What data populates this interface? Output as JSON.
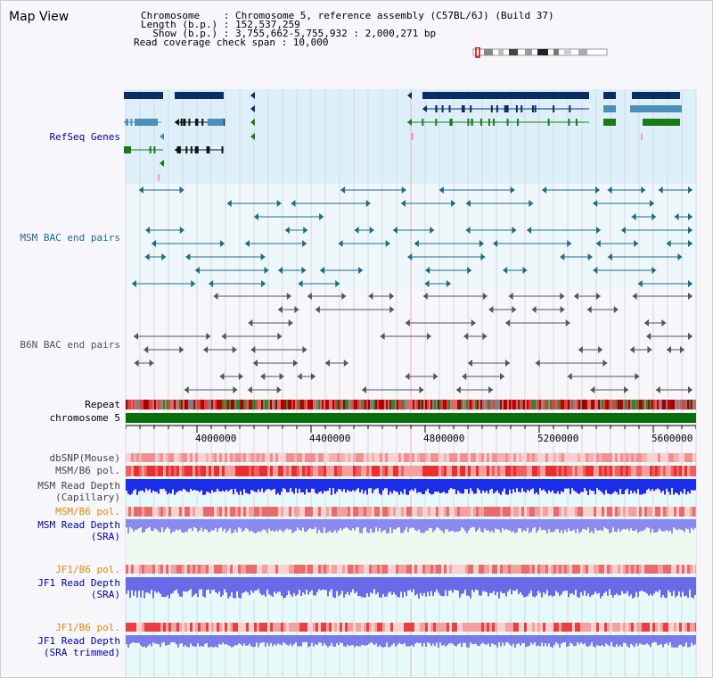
{
  "view_title": "Map View",
  "info": {
    "chromosome": "Chromosome    : Chromosome 5, reference assembly (C57BL/6J) (Build 37)",
    "length": "Length (b.p.) : 152,537,259",
    "show": "  Show (b.p.) : 3,755,662-5,755,932 : 2,000,271 bp",
    "coverage": "Read coverage check span : 10,000"
  },
  "tracks": {
    "refseq": "RefSeq Genes",
    "msm_bac": "MSM BAC end pairs",
    "b6n_bac": "B6N BAC end pairs",
    "repeat": "Repeat",
    "chromosome": "chromosome 5",
    "dbsnp": "dbSNP(Mouse)",
    "msm_pol": "MSM/B6 pol.",
    "msm_depth_cap_1": "MSM Read Depth",
    "msm_depth_cap_2": "(Capillary)",
    "msm_pol_2": "MSM/B6 pol.",
    "msm_depth_sra_1": "MSM Read Depth",
    "msm_depth_sra_2": "(SRA)",
    "jf1_pol": "JF1/B6 pol.",
    "jf1_depth_sra_1": "JF1 Read Depth",
    "jf1_depth_sra_2": "(SRA)",
    "jf1_pol_2": "JF1/B6 pol.",
    "jf1_depth_trim_1": "JF1 Read Depth",
    "jf1_depth_trim_2": "(SRA trimmed)"
  },
  "axis_ticks": [
    "4000000",
    "4400000",
    "4800000",
    "5200000",
    "5600000"
  ],
  "colors": {
    "gene_dark": "#0b2d64",
    "gene_light": "#4a90b8",
    "gene_green": "#1a7a1a",
    "bac_msm": "#1c6a8a",
    "bac_b6n": "#555555",
    "label_blue": "#0000a0",
    "label_teal": "#1c6a8a",
    "label_orange": "#e08a00",
    "chromosome_bar": "#0a6e0a"
  }
}
